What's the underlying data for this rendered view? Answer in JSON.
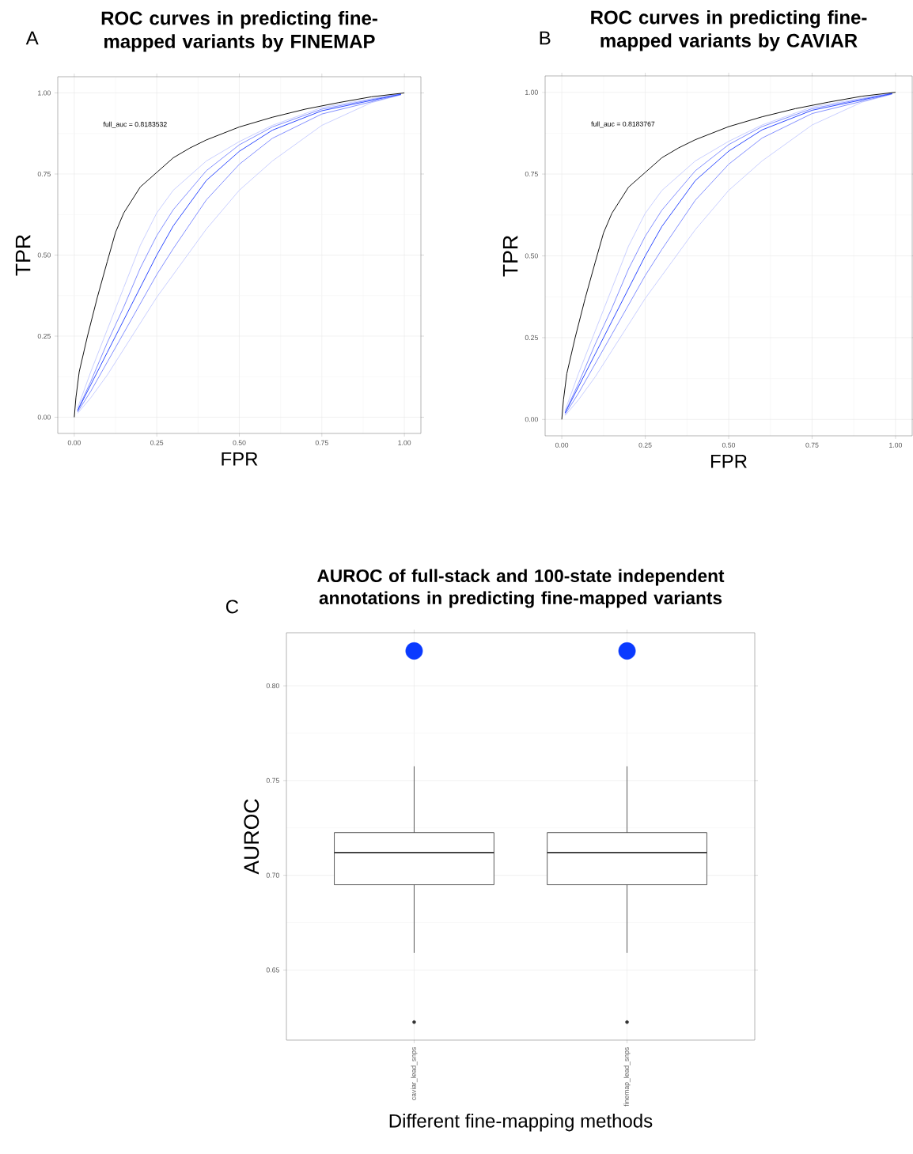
{
  "chart_data": [
    {
      "type": "line",
      "title": "ROC curves in predicting fine-mapped variants by FINEMAP",
      "xlabel": "FPR",
      "ylabel": "TPR",
      "xlim": [
        -0.05,
        1.05
      ],
      "ylim": [
        -0.05,
        1.05
      ],
      "xticks": [
        {
          "value": 0,
          "label": "0.00"
        },
        {
          "value": 0.25,
          "label": "0.25"
        },
        {
          "value": 0.5,
          "label": "0.50"
        },
        {
          "value": 0.75,
          "label": "0.75"
        },
        {
          "value": 1,
          "label": "1.00"
        }
      ],
      "yticks": [
        {
          "value": 0,
          "label": "0.00"
        },
        {
          "value": 0.25,
          "label": "0.25"
        },
        {
          "value": 0.5,
          "label": "0.50"
        },
        {
          "value": 0.75,
          "label": "0.75"
        },
        {
          "value": 1,
          "label": "1.00"
        }
      ],
      "grid": true,
      "marker": "none",
      "annotations": [
        "full_auc = 0.8183532",
        "A"
      ],
      "series": [
        {
          "color": "#c5cbff",
          "x": [
            0.01,
            0.05,
            0.1,
            0.15,
            0.2,
            0.25,
            0.3,
            0.4,
            0.5,
            0.6,
            0.75,
            0.9,
            0.99
          ],
          "values": [
            0.012,
            0.06,
            0.13,
            0.21,
            0.29,
            0.37,
            0.44,
            0.58,
            0.7,
            0.79,
            0.9,
            0.97,
            0.994
          ]
        },
        {
          "color": "#c5cbff",
          "x": [
            0.01,
            0.05,
            0.1,
            0.15,
            0.2,
            0.25,
            0.3,
            0.4,
            0.5,
            0.6,
            0.75,
            0.99
          ],
          "values": [
            0.028,
            0.14,
            0.27,
            0.4,
            0.53,
            0.63,
            0.7,
            0.79,
            0.85,
            0.9,
            0.955,
            0.998
          ]
        },
        {
          "color": "#7a88ff",
          "x": [
            0.01,
            0.05,
            0.1,
            0.15,
            0.2,
            0.25,
            0.3,
            0.4,
            0.5,
            0.6,
            0.75,
            0.99
          ],
          "values": [
            0.016,
            0.08,
            0.17,
            0.26,
            0.35,
            0.44,
            0.52,
            0.67,
            0.78,
            0.86,
            0.935,
            0.995
          ]
        },
        {
          "color": "#7a88ff",
          "x": [
            0.01,
            0.05,
            0.1,
            0.15,
            0.2,
            0.25,
            0.3,
            0.4,
            0.5,
            0.6,
            0.75,
            0.99
          ],
          "values": [
            0.022,
            0.11,
            0.23,
            0.34,
            0.46,
            0.56,
            0.64,
            0.76,
            0.84,
            0.895,
            0.95,
            0.997
          ]
        },
        {
          "color": "#1f3dff",
          "x": [
            0.01,
            0.05,
            0.1,
            0.15,
            0.2,
            0.25,
            0.3,
            0.4,
            0.5,
            0.6,
            0.75,
            0.99
          ],
          "values": [
            0.02,
            0.1,
            0.2,
            0.3,
            0.4,
            0.5,
            0.59,
            0.73,
            0.82,
            0.885,
            0.945,
            0.996
          ]
        },
        {
          "color": "#000000",
          "x": [
            0,
            0.005,
            0.015,
            0.04,
            0.07,
            0.1,
            0.125,
            0.15,
            0.2,
            0.25,
            0.3,
            0.35,
            0.4,
            0.5,
            0.6,
            0.7,
            0.8,
            0.9,
            1
          ],
          "values": [
            0,
            0.06,
            0.14,
            0.25,
            0.37,
            0.48,
            0.57,
            0.63,
            0.71,
            0.755,
            0.8,
            0.83,
            0.855,
            0.895,
            0.925,
            0.95,
            0.97,
            0.988,
            1
          ]
        }
      ]
    },
    {
      "type": "line",
      "title": "ROC curves in predicting fine-mapped variants by CAVIAR",
      "xlabel": "FPR",
      "ylabel": "TPR",
      "xlim": [
        -0.05,
        1.05
      ],
      "ylim": [
        -0.05,
        1.05
      ],
      "xticks": [
        {
          "value": 0,
          "label": "0.00"
        },
        {
          "value": 0.25,
          "label": "0.25"
        },
        {
          "value": 0.5,
          "label": "0.50"
        },
        {
          "value": 0.75,
          "label": "0.75"
        },
        {
          "value": 1,
          "label": "1.00"
        }
      ],
      "yticks": [
        {
          "value": 0,
          "label": "0.00"
        },
        {
          "value": 0.25,
          "label": "0.25"
        },
        {
          "value": 0.5,
          "label": "0.50"
        },
        {
          "value": 0.75,
          "label": "0.75"
        },
        {
          "value": 1,
          "label": "1.00"
        }
      ],
      "grid": true,
      "marker": "none",
      "annotations": [
        "full_auc = 0.8183767",
        "B"
      ],
      "series": [
        {
          "color": "#c5cbff",
          "x": [
            0.01,
            0.05,
            0.1,
            0.15,
            0.2,
            0.25,
            0.3,
            0.4,
            0.5,
            0.6,
            0.75,
            0.9,
            0.99
          ],
          "values": [
            0.012,
            0.06,
            0.13,
            0.21,
            0.29,
            0.37,
            0.44,
            0.58,
            0.7,
            0.79,
            0.9,
            0.97,
            0.994
          ]
        },
        {
          "color": "#c5cbff",
          "x": [
            0.01,
            0.05,
            0.1,
            0.15,
            0.2,
            0.25,
            0.3,
            0.4,
            0.5,
            0.6,
            0.75,
            0.99
          ],
          "values": [
            0.028,
            0.14,
            0.27,
            0.4,
            0.53,
            0.63,
            0.7,
            0.79,
            0.85,
            0.9,
            0.955,
            0.998
          ]
        },
        {
          "color": "#7a88ff",
          "x": [
            0.01,
            0.05,
            0.1,
            0.15,
            0.2,
            0.25,
            0.3,
            0.4,
            0.5,
            0.6,
            0.75,
            0.99
          ],
          "values": [
            0.016,
            0.08,
            0.17,
            0.26,
            0.35,
            0.44,
            0.52,
            0.67,
            0.78,
            0.86,
            0.935,
            0.995
          ]
        },
        {
          "color": "#7a88ff",
          "x": [
            0.01,
            0.05,
            0.1,
            0.15,
            0.2,
            0.25,
            0.3,
            0.4,
            0.5,
            0.6,
            0.75,
            0.99
          ],
          "values": [
            0.022,
            0.11,
            0.23,
            0.34,
            0.46,
            0.56,
            0.64,
            0.76,
            0.84,
            0.895,
            0.95,
            0.997
          ]
        },
        {
          "color": "#1f3dff",
          "x": [
            0.01,
            0.05,
            0.1,
            0.15,
            0.2,
            0.25,
            0.3,
            0.4,
            0.5,
            0.6,
            0.75,
            0.99
          ],
          "values": [
            0.02,
            0.1,
            0.2,
            0.3,
            0.4,
            0.5,
            0.59,
            0.73,
            0.82,
            0.885,
            0.945,
            0.996
          ]
        },
        {
          "color": "#000000",
          "x": [
            0,
            0.005,
            0.015,
            0.04,
            0.07,
            0.1,
            0.125,
            0.15,
            0.2,
            0.25,
            0.3,
            0.35,
            0.4,
            0.5,
            0.6,
            0.7,
            0.8,
            0.9,
            1
          ],
          "values": [
            0,
            0.06,
            0.14,
            0.25,
            0.37,
            0.48,
            0.57,
            0.63,
            0.71,
            0.755,
            0.8,
            0.83,
            0.855,
            0.895,
            0.925,
            0.95,
            0.97,
            0.988,
            1
          ]
        }
      ]
    },
    {
      "type": "box",
      "title": "AUROC of full-stack and 100-state independent annotations in predicting fine-mapped variants",
      "xlabel": "Different fine-mapping methods",
      "ylabel": "AUROC",
      "categories": [
        "caviar_lead_snps",
        "finemap_lead_snps"
      ],
      "ylim": [
        0.613,
        0.828
      ],
      "yticks": [
        {
          "value": 0.65,
          "label": "0.65"
        },
        {
          "value": 0.7,
          "label": "0.70"
        },
        {
          "value": 0.75,
          "label": "0.75"
        },
        {
          "value": 0.8,
          "label": "0.80"
        }
      ],
      "grid": true,
      "annotations": [
        "C"
      ],
      "boxes": [
        {
          "low": 0.659,
          "q1": 0.695,
          "median": 0.712,
          "q3": 0.7225,
          "high": 0.7575,
          "outliers": [
            0.6225
          ]
        },
        {
          "low": 0.659,
          "q1": 0.695,
          "median": 0.712,
          "q3": 0.7225,
          "high": 0.7575,
          "outliers": [
            0.6225
          ]
        }
      ],
      "series": [
        {
          "type": "scatter",
          "color": "#0a3aff",
          "marker": "circle",
          "x": [
            "caviar_lead_snps",
            "finemap_lead_snps"
          ],
          "values": [
            0.8184,
            0.8184
          ]
        }
      ]
    }
  ]
}
